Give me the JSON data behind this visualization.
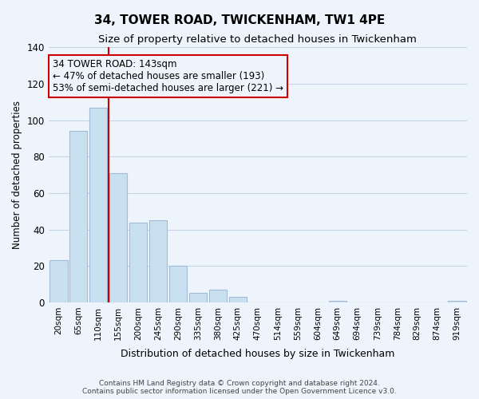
{
  "title": "34, TOWER ROAD, TWICKENHAM, TW1 4PE",
  "subtitle": "Size of property relative to detached houses in Twickenham",
  "xlabel": "Distribution of detached houses by size in Twickenham",
  "ylabel": "Number of detached properties",
  "bar_labels": [
    "20sqm",
    "65sqm",
    "110sqm",
    "155sqm",
    "200sqm",
    "245sqm",
    "290sqm",
    "335sqm",
    "380sqm",
    "425sqm",
    "470sqm",
    "514sqm",
    "559sqm",
    "604sqm",
    "649sqm",
    "694sqm",
    "739sqm",
    "784sqm",
    "829sqm",
    "874sqm",
    "919sqm"
  ],
  "bar_values": [
    23,
    94,
    107,
    71,
    44,
    45,
    20,
    5,
    7,
    3,
    0,
    0,
    0,
    0,
    1,
    0,
    0,
    0,
    0,
    0,
    1
  ],
  "bar_color": "#c9e0f0",
  "bar_edge_color": "#a0bcd8",
  "ylim": [
    0,
    140
  ],
  "yticks": [
    0,
    20,
    40,
    60,
    80,
    100,
    120,
    140
  ],
  "vline_color": "#cc0000",
  "vline_bar_index": 3,
  "annotation_line1": "34 TOWER ROAD: 143sqm",
  "annotation_line2": "← 47% of detached houses are smaller (193)",
  "annotation_line3": "53% of semi-detached houses are larger (221) →",
  "footer_line1": "Contains HM Land Registry data © Crown copyright and database right 2024.",
  "footer_line2": "Contains public sector information licensed under the Open Government Licence v3.0.",
  "background_color": "#eef4fb",
  "plot_bg_color": "#eef4fb",
  "grid_color": "#c5d5e8"
}
